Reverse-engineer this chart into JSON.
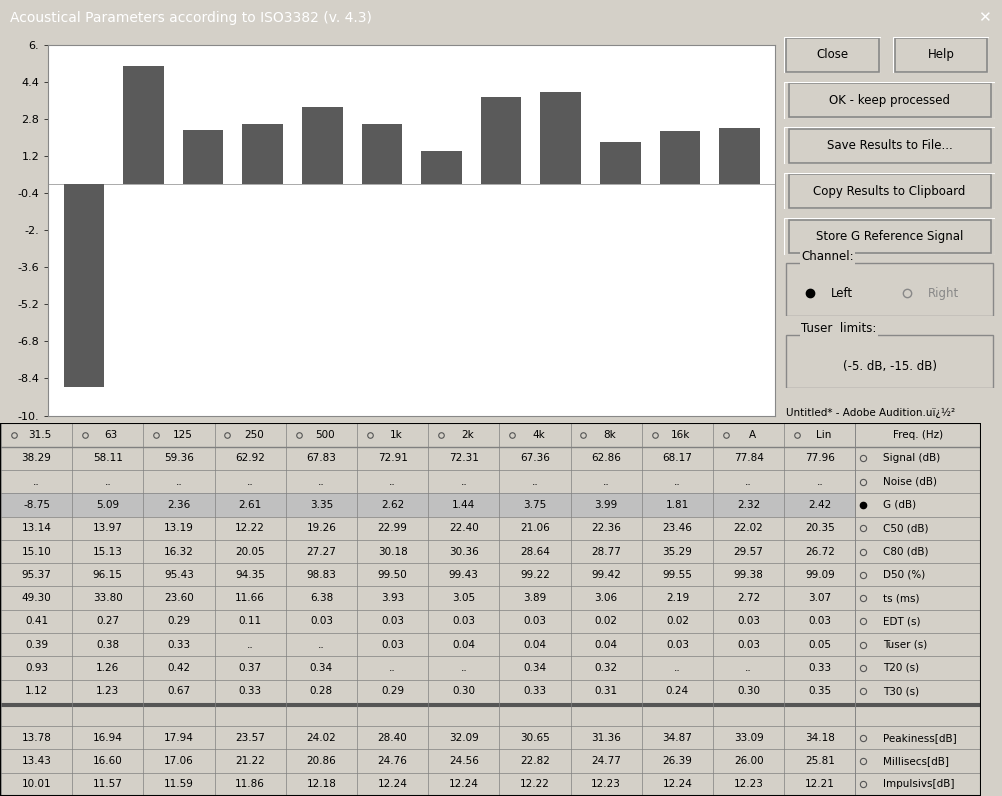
{
  "title": "Acoustical Parameters according to ISO3382 (v. 4.3)",
  "bar_values": [
    -8.75,
    5.09,
    2.36,
    2.61,
    3.35,
    2.62,
    1.44,
    3.75,
    3.99,
    1.81,
    2.32,
    2.42
  ],
  "bar_labels": [
    "31.5",
    "63",
    "125",
    "250",
    "500",
    "1k",
    "2k",
    "4k",
    "8k",
    "16k",
    "A",
    "Lin"
  ],
  "bar_color": "#5a5a5a",
  "ylim": [
    -10,
    6
  ],
  "yticks": [
    6,
    4.4,
    2.8,
    1.2,
    -0.4,
    -2.0,
    -3.6,
    -5.2,
    -6.8,
    -8.4,
    -10.0
  ],
  "ytick_labels": [
    "6.",
    "4.4",
    "2.8",
    "1.2",
    "-0.4",
    "-2.",
    "-3.6",
    "-5.2",
    "-6.8",
    "-8.4",
    "-10."
  ],
  "bg_color": "#d4d0c8",
  "chart_bg": "#ffffff",
  "title_color": "#000080",
  "freq_label": "Freq. (Hz)",
  "table_col_headers": [
    "31.5",
    "63",
    "125",
    "250",
    "500",
    "1k",
    "2k",
    "4k",
    "8k",
    "16k",
    "A",
    "Lin"
  ],
  "row_labels": [
    "Signal (dB)",
    "Noise (dB)",
    "G (dB)",
    "C50 (dB)",
    "C80 (dB)",
    "D50 (%)",
    "ts (ms)",
    "EDT (s)",
    "Tuser (s)",
    "T20 (s)",
    "T30 (s)",
    "Peakiness[dB]",
    "Millisecs[dB]",
    "Impulsivs[dB]"
  ],
  "table_data": [
    [
      "38.29",
      "58.11",
      "59.36",
      "62.92",
      "67.83",
      "72.91",
      "72.31",
      "67.36",
      "62.86",
      "68.17",
      "77.84",
      "77.96"
    ],
    [
      "..",
      "..",
      "..",
      "..",
      "..",
      "..",
      "..",
      "..",
      "..",
      "..",
      "..",
      ".."
    ],
    [
      "-8.75",
      "5.09",
      "2.36",
      "2.61",
      "3.35",
      "2.62",
      "1.44",
      "3.75",
      "3.99",
      "1.81",
      "2.32",
      "2.42"
    ],
    [
      "13.14",
      "13.97",
      "13.19",
      "12.22",
      "19.26",
      "22.99",
      "22.40",
      "21.06",
      "22.36",
      "23.46",
      "22.02",
      "20.35"
    ],
    [
      "15.10",
      "15.13",
      "16.32",
      "20.05",
      "27.27",
      "30.18",
      "30.36",
      "28.64",
      "28.77",
      "35.29",
      "29.57",
      "26.72"
    ],
    [
      "95.37",
      "96.15",
      "95.43",
      "94.35",
      "98.83",
      "99.50",
      "99.43",
      "99.22",
      "99.42",
      "99.55",
      "99.38",
      "99.09"
    ],
    [
      "49.30",
      "33.80",
      "23.60",
      "11.66",
      "6.38",
      "3.93",
      "3.05",
      "3.89",
      "3.06",
      "2.19",
      "2.72",
      "3.07"
    ],
    [
      "0.41",
      "0.27",
      "0.29",
      "0.11",
      "0.03",
      "0.03",
      "0.03",
      "0.03",
      "0.02",
      "0.02",
      "0.03",
      "0.03"
    ],
    [
      "0.39",
      "0.38",
      "0.33",
      "..",
      "..",
      "0.03",
      "0.04",
      "0.04",
      "0.04",
      "0.03",
      "0.03",
      "0.05"
    ],
    [
      "0.93",
      "1.26",
      "0.42",
      "0.37",
      "0.34",
      "..",
      "..",
      "0.34",
      "0.32",
      "..",
      "..",
      "0.33"
    ],
    [
      "1.12",
      "1.23",
      "0.67",
      "0.33",
      "0.28",
      "0.29",
      "0.30",
      "0.33",
      "0.31",
      "0.24",
      "0.30",
      "0.35"
    ],
    [
      "13.78",
      "16.94",
      "17.94",
      "23.57",
      "24.02",
      "28.40",
      "32.09",
      "30.65",
      "31.36",
      "34.87",
      "33.09",
      "34.18"
    ],
    [
      "13.43",
      "16.60",
      "17.06",
      "21.22",
      "20.86",
      "24.76",
      "24.56",
      "22.82",
      "24.77",
      "26.39",
      "26.00",
      "25.81"
    ],
    [
      "10.01",
      "11.57",
      "11.59",
      "11.86",
      "12.18",
      "12.24",
      "12.24",
      "12.22",
      "12.23",
      "12.24",
      "12.23",
      "12.21"
    ]
  ],
  "selected_row": 2,
  "channel_label": "Channel:",
  "channel_left": "Left",
  "channel_right": "Right",
  "tuser_label": "Tuser  limits:",
  "tuser_value": "(-5. dB, -15. dB)",
  "footer_text": "Untitled* - Adobe Audition.uï¿½²",
  "close_btn": "Close",
  "help_btn": "Help",
  "ok_btn": "OK - keep processed",
  "save_btn": "Save Results to File...",
  "copy_btn": "Copy Results to Clipboard",
  "store_btn": "Store G Reference Signal"
}
